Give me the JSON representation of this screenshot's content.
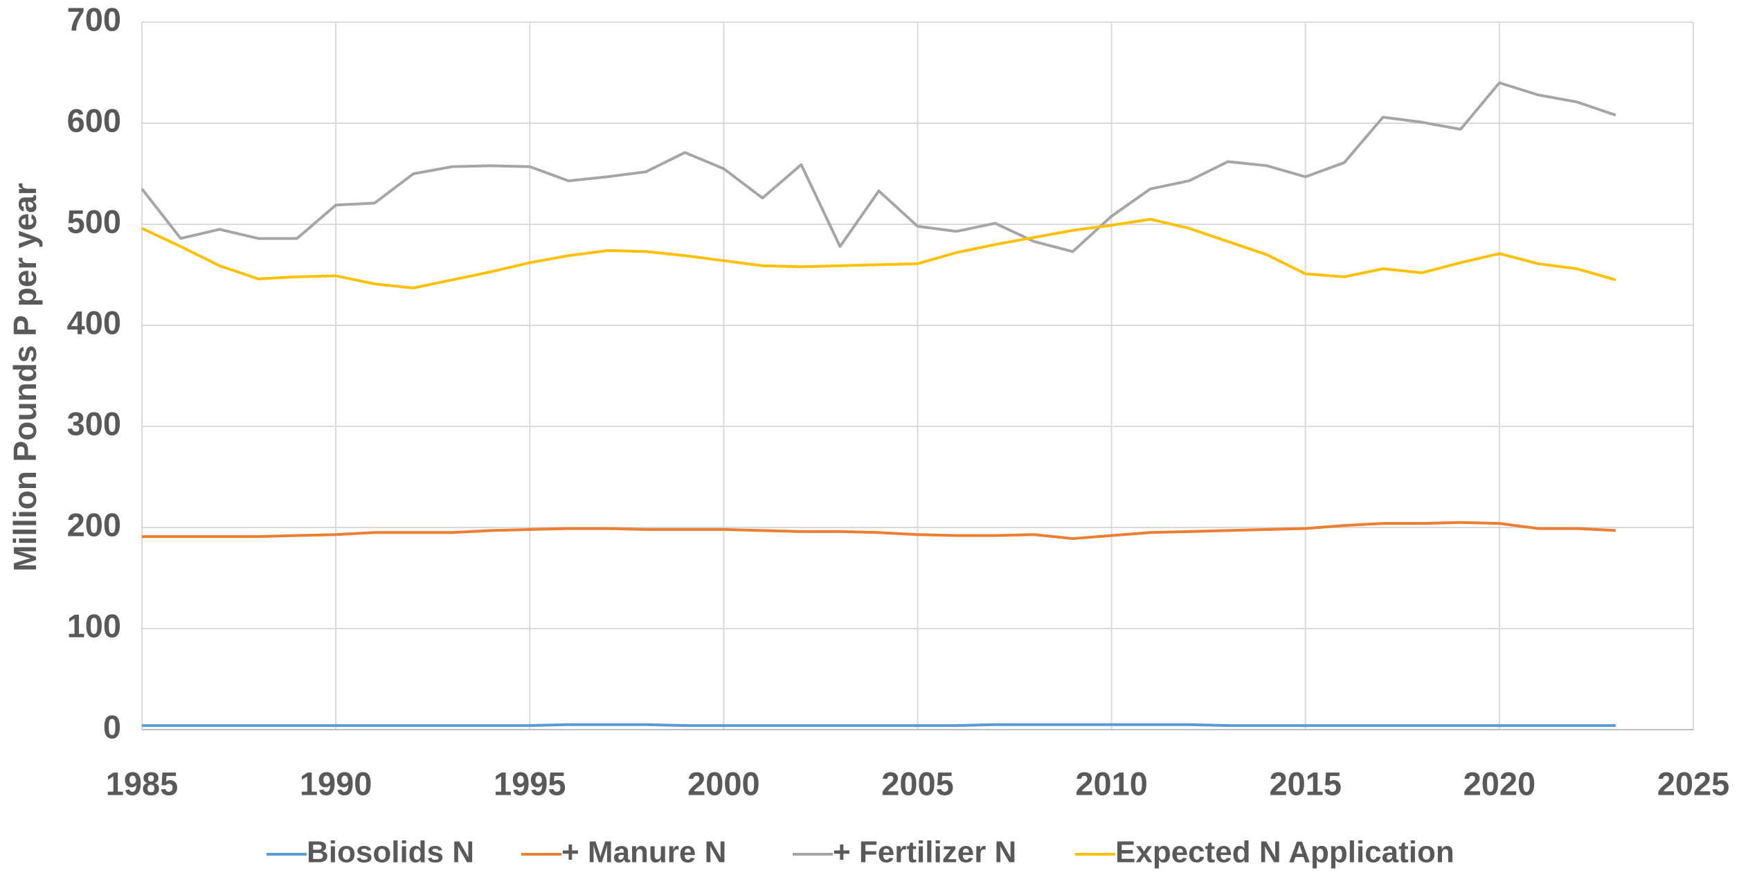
{
  "chart_data": {
    "type": "line",
    "y_label": "Million Pounds P per year",
    "x": [
      1985,
      1986,
      1987,
      1988,
      1989,
      1990,
      1991,
      1992,
      1993,
      1994,
      1995,
      1996,
      1997,
      1998,
      1999,
      2000,
      2001,
      2002,
      2003,
      2004,
      2005,
      2006,
      2007,
      2008,
      2009,
      2010,
      2011,
      2012,
      2013,
      2014,
      2015,
      2016,
      2017,
      2018,
      2019,
      2020,
      2021,
      2022,
      2023
    ],
    "xlim": [
      1985,
      2025
    ],
    "xticks": [
      1985,
      1990,
      1995,
      2000,
      2005,
      2010,
      2015,
      2020,
      2025
    ],
    "ylim": [
      0,
      700
    ],
    "yticks": [
      0,
      100,
      200,
      300,
      400,
      500,
      600,
      700
    ],
    "grid": true,
    "legend": "bottom",
    "series": [
      {
        "name": "Biosolids N",
        "color": "#5b9bd5",
        "values": [
          4,
          4,
          4,
          4,
          4,
          4,
          4,
          4,
          4,
          4,
          4,
          5,
          5,
          5,
          4,
          4,
          4,
          4,
          4,
          4,
          4,
          4,
          5,
          5,
          5,
          5,
          5,
          5,
          4,
          4,
          4,
          4,
          4,
          4,
          4,
          4,
          4,
          4,
          4
        ]
      },
      {
        "name": "+ Manure N",
        "color": "#ed7d31",
        "values": [
          191,
          191,
          191,
          191,
          192,
          193,
          195,
          195,
          195,
          197,
          198,
          199,
          199,
          198,
          198,
          198,
          197,
          196,
          196,
          195,
          193,
          192,
          192,
          193,
          189,
          192,
          195,
          196,
          197,
          198,
          199,
          202,
          204,
          204,
          205,
          204,
          199,
          199,
          197
        ]
      },
      {
        "name": "+ Fertilizer N",
        "color": "#a5a5a5",
        "values": [
          535,
          486,
          495,
          486,
          486,
          519,
          521,
          550,
          557,
          558,
          557,
          543,
          547,
          552,
          571,
          555,
          526,
          559,
          478,
          533,
          498,
          493,
          501,
          483,
          473,
          508,
          535,
          543,
          562,
          558,
          547,
          561,
          606,
          601,
          594,
          640,
          628,
          621,
          608
        ]
      },
      {
        "name": "Expected N Application",
        "color": "#ffc000",
        "values": [
          496,
          478,
          459,
          446,
          448,
          449,
          441,
          437,
          445,
          453,
          462,
          469,
          474,
          473,
          469,
          464,
          459,
          458,
          459,
          460,
          461,
          472,
          480,
          487,
          494,
          499,
          505,
          496,
          483,
          470,
          451,
          448,
          456,
          452,
          462,
          471,
          461,
          456,
          445
        ]
      }
    ]
  }
}
